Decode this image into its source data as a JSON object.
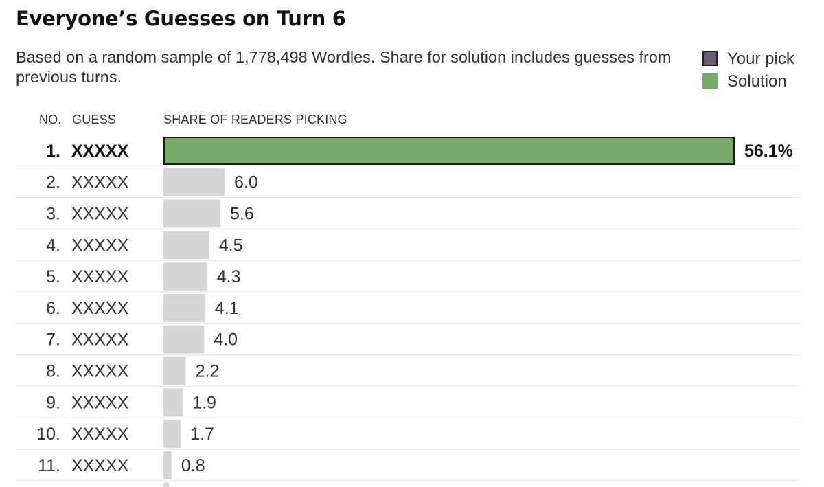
{
  "title": "Everyone’s Guesses on Turn 6",
  "subtitle": "Based on a random sample of 1,778,498 Wordles. Share for solution includes guesses from previous turns.",
  "legend": {
    "your_pick": "Your pick",
    "solution": "Solution"
  },
  "columns": {
    "no": "NO.",
    "guess": "GUESS",
    "share": "SHARE OF READERS PICKING"
  },
  "colors": {
    "solution": "#79a86b",
    "your_pick": "#6e5a78",
    "other": "#d6d6d6",
    "divider": "#e2e2e2"
  },
  "chart_data": {
    "type": "bar",
    "title": "Everyone’s Guesses on Turn 6",
    "xlabel": "SHARE OF READERS PICKING",
    "ylabel": "GUESS",
    "xlim": [
      0,
      56.1
    ],
    "grid": false,
    "legend_position": "top-right",
    "categories": [
      "XXXXX",
      "XXXXX",
      "XXXXX",
      "XXXXX",
      "XXXXX",
      "XXXXX",
      "XXXXX",
      "XXXXX",
      "XXXXX",
      "XXXXX",
      "XXXXX"
    ],
    "numbers": [
      "1.",
      "2.",
      "3.",
      "4.",
      "5.",
      "6.",
      "7.",
      "8.",
      "9.",
      "10.",
      "11."
    ],
    "values": [
      56.1,
      6.0,
      5.6,
      4.5,
      4.3,
      4.1,
      4.0,
      2.2,
      1.9,
      1.7,
      0.8
    ],
    "labels": [
      "56.1%",
      "6.0",
      "5.6",
      "4.5",
      "4.3",
      "4.1",
      "4.0",
      "2.2",
      "1.9",
      "1.7",
      "0.8"
    ],
    "solution_index": 0
  }
}
